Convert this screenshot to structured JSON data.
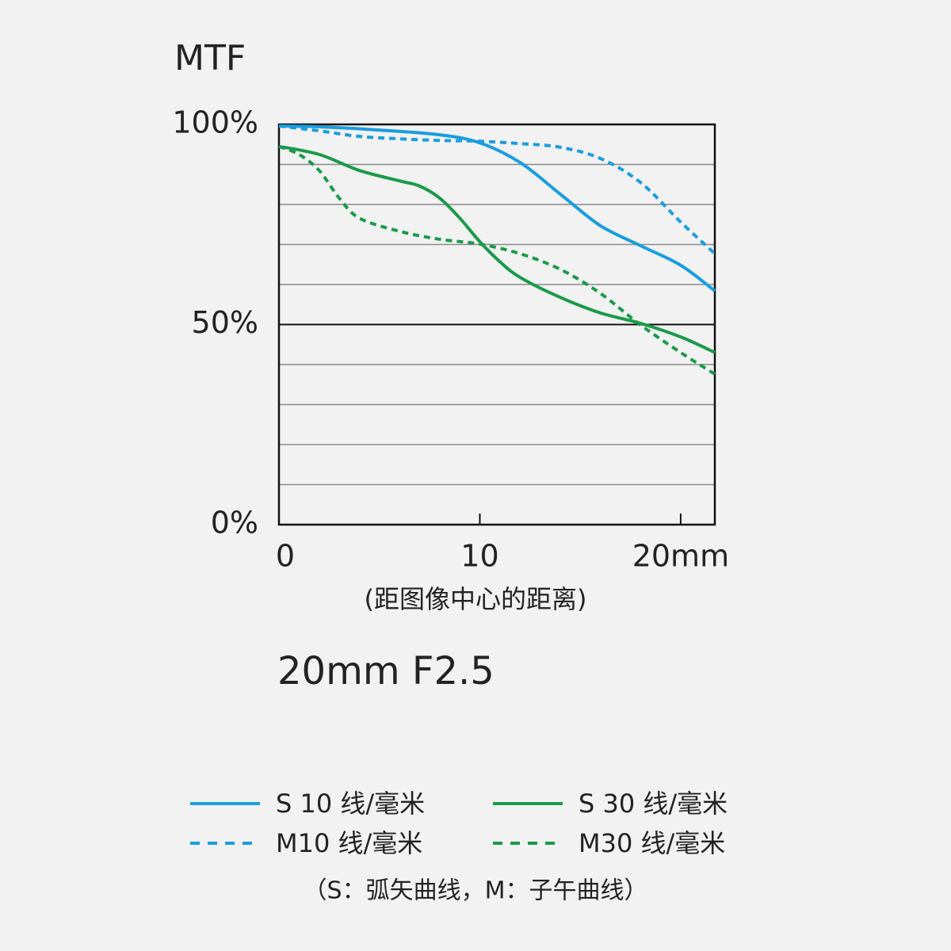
{
  "chart_data": {
    "type": "line",
    "title": "MTF",
    "subtitle": "20mm F2.5",
    "x_label": "(距图像中心的距离)",
    "note": "（S：弧矢曲线，M：子午曲线）",
    "xlim": [
      0,
      21.7
    ],
    "xticks": [
      0,
      10,
      {
        "value": 20,
        "label": "20mm"
      }
    ],
    "ylim": [
      0,
      100
    ],
    "yticks": [
      {
        "value": 0,
        "label": "0%"
      },
      {
        "value": 50,
        "label": "50%"
      },
      {
        "value": 100,
        "label": "100%"
      }
    ],
    "minor_yticks": [
      10,
      20,
      30,
      40,
      60,
      70,
      80,
      90
    ],
    "grid": true,
    "series": [
      {
        "name": "S 10 线/毫米",
        "color": "#1a9de0",
        "dashed": false,
        "x": [
          0,
          2,
          5,
          8,
          10,
          12,
          14,
          16,
          18,
          20,
          21.7
        ],
        "values": [
          99.6,
          99.4,
          98.6,
          97.4,
          95.4,
          90.5,
          82.6,
          74.7,
          69.7,
          64.8,
          58.4
        ]
      },
      {
        "name": "M10 线/毫米",
        "color": "#1a9de0",
        "dashed": true,
        "x": [
          0,
          2,
          4,
          6,
          8,
          10,
          12,
          14,
          16,
          18,
          20,
          21.7
        ],
        "values": [
          99.6,
          98.4,
          97,
          96.4,
          96,
          95.8,
          95.2,
          94.3,
          91.5,
          85.5,
          75.6,
          67.7
        ]
      },
      {
        "name": "S 30 线/毫米",
        "color": "#1a9a4a",
        "dashed": false,
        "x": [
          0,
          2,
          4,
          6,
          7,
          8,
          9,
          10,
          11,
          12,
          14,
          16,
          18,
          20,
          21.7
        ],
        "values": [
          94.5,
          92.5,
          88.5,
          85.9,
          84.6,
          81.6,
          76.6,
          70.7,
          65.7,
          61.8,
          56.8,
          52.9,
          50.3,
          46.9,
          43
        ]
      },
      {
        "name": "M30 线/毫米",
        "color": "#1a9a4a",
        "dashed": true,
        "x": [
          0,
          1,
          2,
          3,
          4,
          6,
          8,
          10,
          12,
          14,
          16,
          18,
          20,
          21.7
        ],
        "values": [
          94.5,
          92.5,
          88.5,
          81.6,
          76.6,
          73.3,
          71.3,
          70.1,
          67.7,
          63.8,
          57.8,
          49.9,
          43,
          37.6
        ]
      }
    ]
  }
}
